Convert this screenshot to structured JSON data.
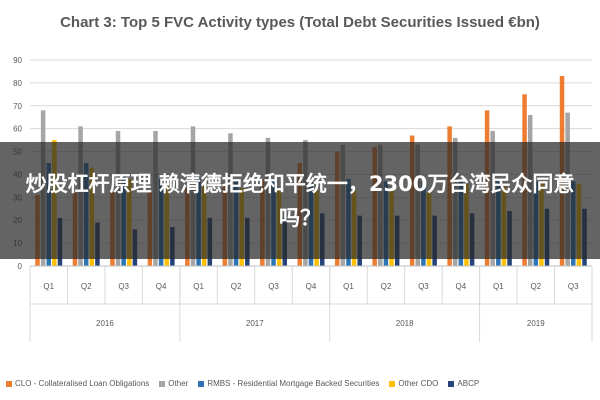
{
  "chart_data": {
    "type": "bar",
    "title": "Chart 3: Top 5 FVC Activity types (Total Debt Securities Issued €bn)",
    "ylim": [
      0,
      90
    ],
    "yticks": [
      0,
      10,
      20,
      30,
      40,
      50,
      60,
      70,
      80,
      90
    ],
    "grid": true,
    "legend_position": "bottom",
    "categories": [
      "Q1",
      "Q2",
      "Q3",
      "Q4",
      "Q1",
      "Q2",
      "Q3",
      "Q4",
      "Q1",
      "Q2",
      "Q3",
      "Q4",
      "Q1",
      "Q2",
      "Q3"
    ],
    "years": [
      {
        "label": "2016",
        "count": 4
      },
      {
        "label": "2017",
        "count": 4
      },
      {
        "label": "2018",
        "count": 4
      },
      {
        "label": "2019",
        "count": 3
      }
    ],
    "series": [
      {
        "name": "CLO - Collateralised Loan Obligations",
        "color": "#ED7D31",
        "values": [
          31,
          32,
          32,
          33,
          34,
          36,
          38,
          45,
          50,
          52,
          57,
          61,
          68,
          75,
          83
        ]
      },
      {
        "name": "Other",
        "color": "#A5A5A5",
        "values": [
          68,
          61,
          59,
          59,
          61,
          58,
          56,
          55,
          53,
          53,
          53,
          56,
          59,
          66,
          67
        ]
      },
      {
        "name": "RMBS - Residential Mortgage Backed Securities",
        "color": "#2E75B6",
        "values": [
          45,
          45,
          40,
          38,
          38,
          38,
          38,
          38,
          38,
          37,
          37,
          37,
          37,
          37,
          37
        ]
      },
      {
        "name": "Other CDO",
        "color": "#FFC000",
        "values": [
          55,
          43,
          38,
          36,
          35,
          34,
          33,
          33,
          33,
          33,
          32,
          36,
          36,
          36,
          36
        ]
      },
      {
        "name": "ABCP",
        "color": "#264478",
        "values": [
          21,
          19,
          16,
          17,
          21,
          21,
          21,
          23,
          22,
          22,
          22,
          23,
          24,
          25,
          25
        ]
      }
    ]
  },
  "overlay": {
    "headline": "炒股杠杆原理 赖清德拒绝和平统一，2300万台湾民众同意吗？"
  }
}
